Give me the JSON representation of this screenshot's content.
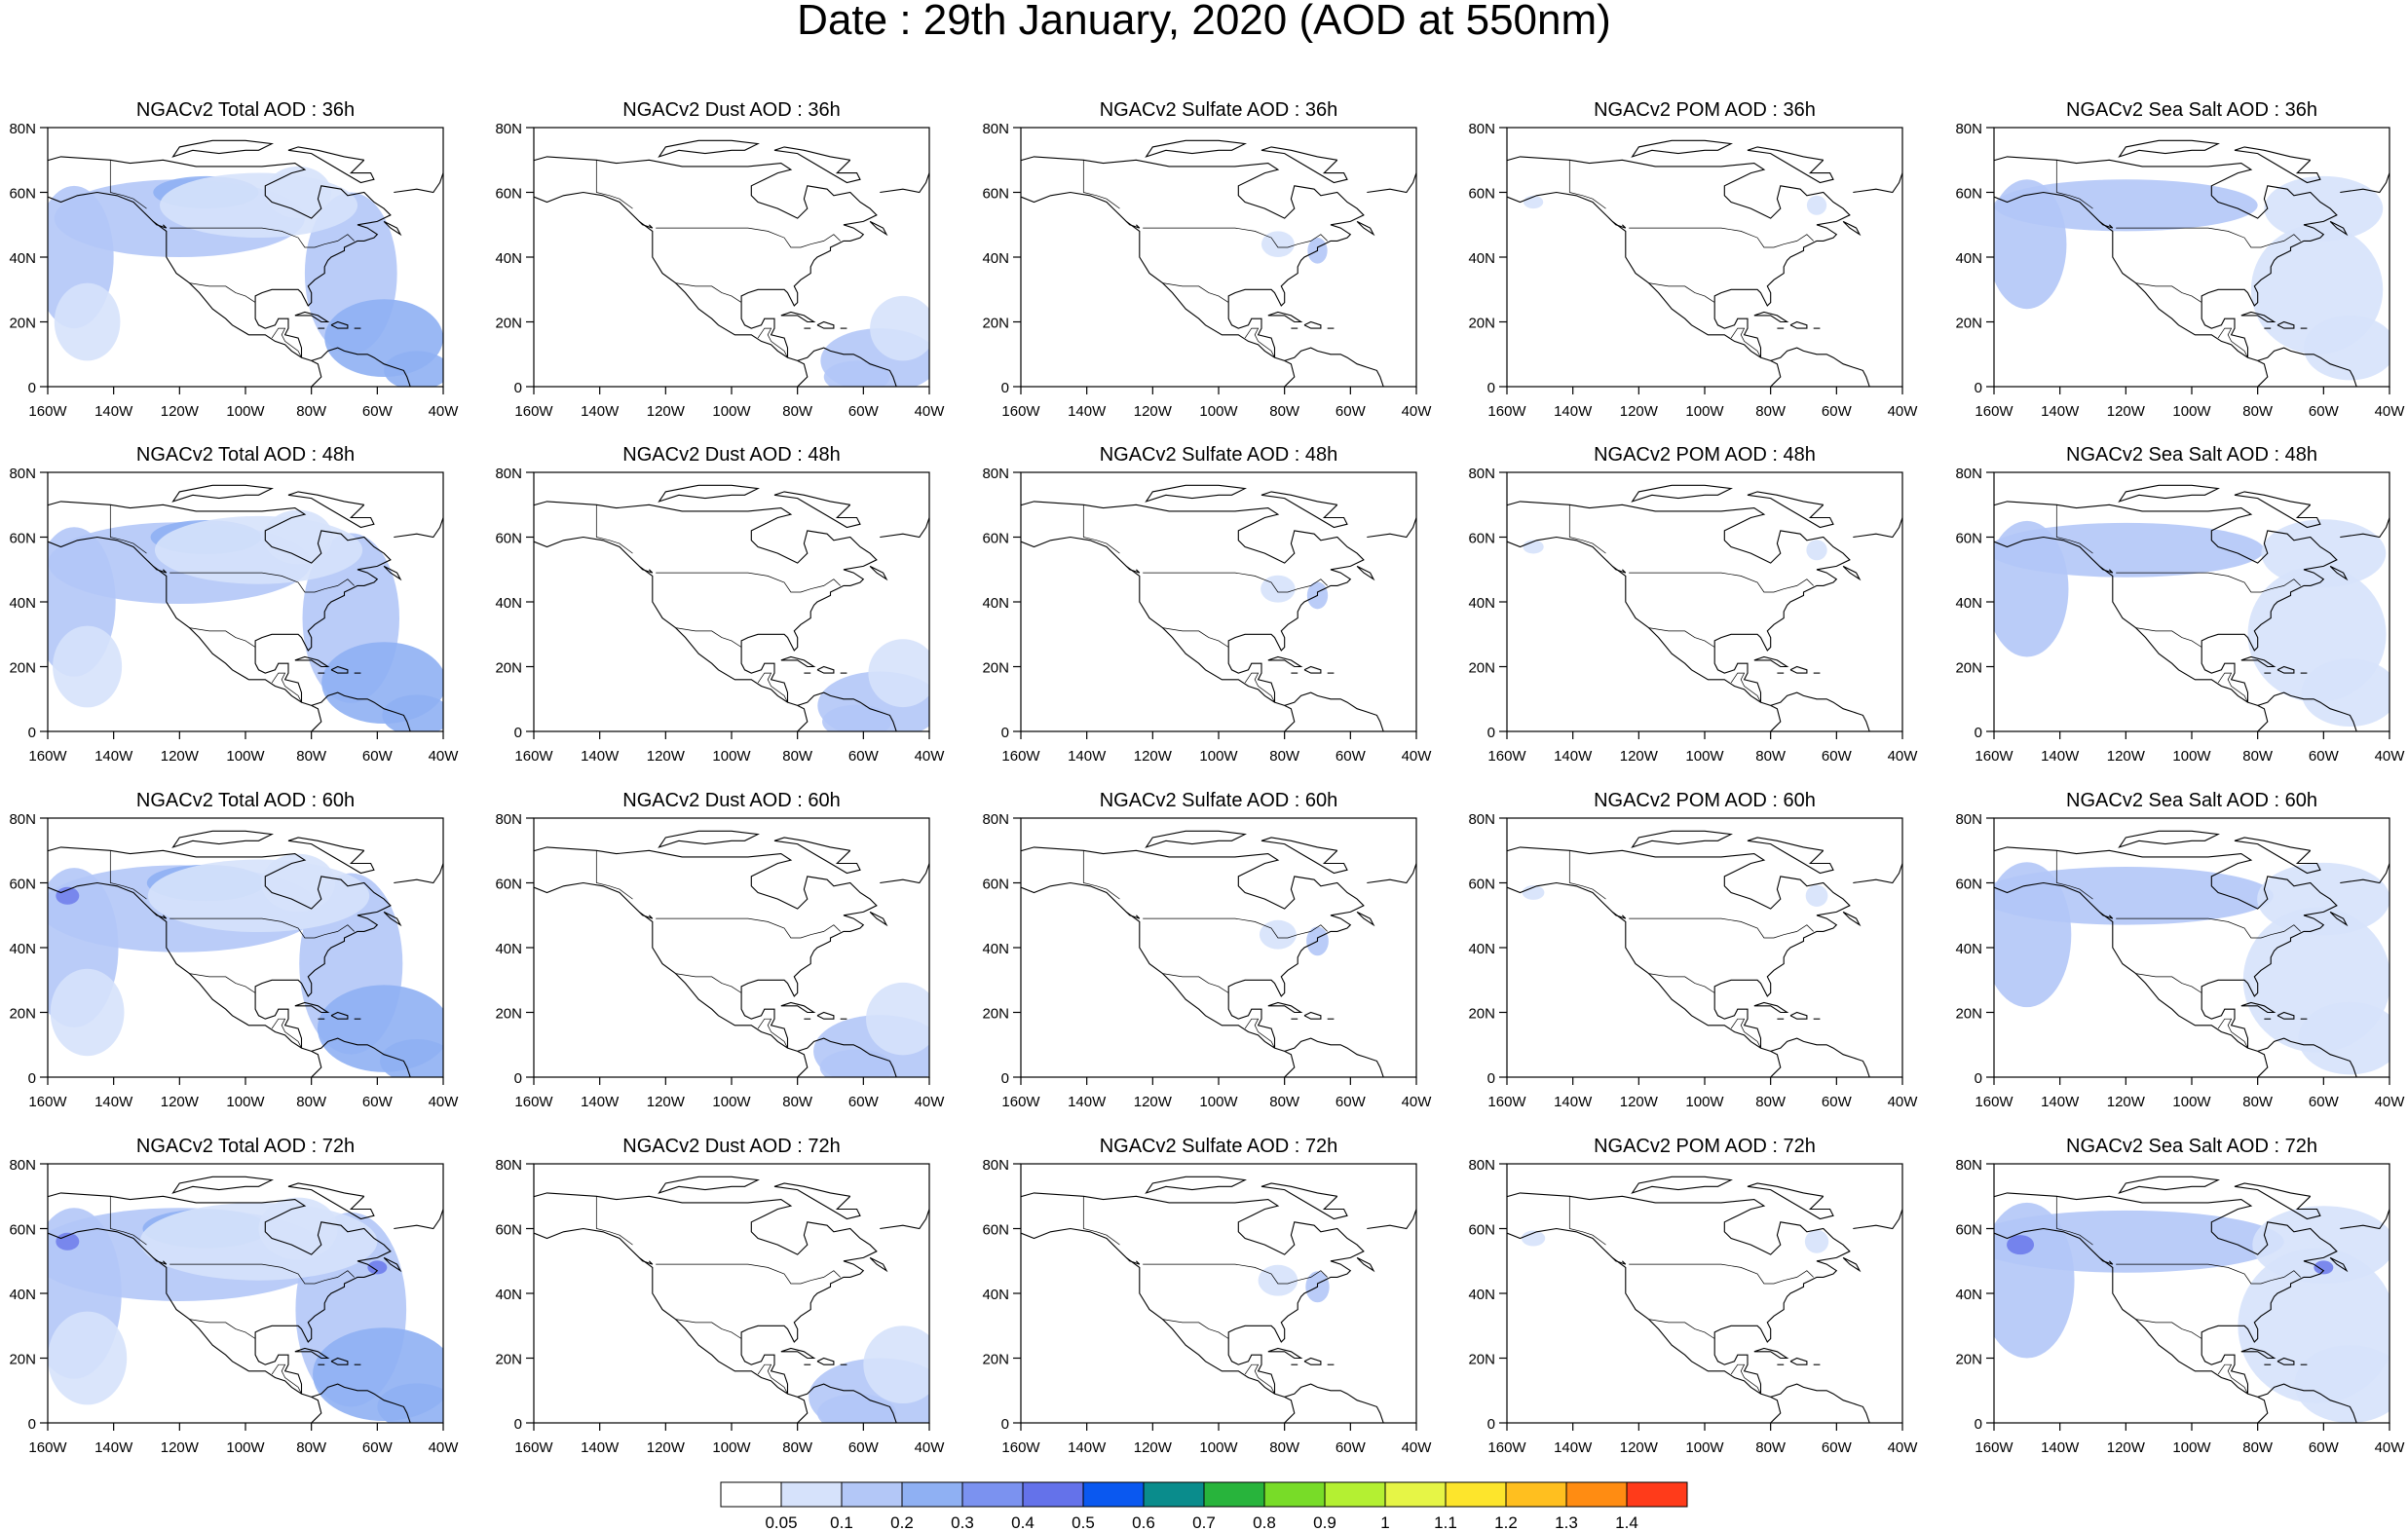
{
  "title": "Date : 29th January, 2020 (AOD at 550nm)",
  "panels": [
    [
      "NGACv2 Total AOD : 36h",
      "NGACv2 Dust AOD : 36h",
      "NGACv2 Sulfate AOD : 36h",
      "NGACv2 POM AOD : 36h",
      "NGACv2 Sea Salt AOD : 36h"
    ],
    [
      "NGACv2 Total AOD : 48h",
      "NGACv2 Dust AOD : 48h",
      "NGACv2 Sulfate AOD : 48h",
      "NGACv2 POM AOD : 48h",
      "NGACv2 Sea Salt AOD : 48h"
    ],
    [
      "NGACv2 Total AOD : 60h",
      "NGACv2 Dust AOD : 60h",
      "NGACv2 Sulfate AOD : 60h",
      "NGACv2 POM AOD : 60h",
      "NGACv2 Sea Salt AOD : 60h"
    ],
    [
      "NGACv2 Total AOD : 72h",
      "NGACv2 Dust AOD : 72h",
      "NGACv2 Sulfate AOD : 72h",
      "NGACv2 POM AOD : 72h",
      "NGACv2 Sea Salt  AOD : 72h"
    ]
  ],
  "lat_ticks": [
    "80N",
    "60N",
    "40N",
    "20N",
    "0"
  ],
  "lon_ticks": [
    "160W",
    "140W",
    "120W",
    "100W",
    "80W",
    "60W",
    "40W"
  ],
  "map_extent": {
    "lon": [
      -160,
      -40
    ],
    "lat": [
      0,
      80
    ]
  },
  "colorbar": {
    "labels": [
      "0.05",
      "0.1",
      "0.2",
      "0.3",
      "0.4",
      "0.5",
      "0.6",
      "0.7",
      "0.8",
      "0.9",
      "1",
      "1.1",
      "1.2",
      "1.3",
      "1.4"
    ],
    "colors": [
      "#ffffff",
      "#d6e2fb",
      "#b3c7f7",
      "#8fb0f3",
      "#7b92f0",
      "#6472ea",
      "#0a58f0",
      "#0a8c8c",
      "#28b43c",
      "#78dc28",
      "#b4f032",
      "#e6f546",
      "#fde52c",
      "#ffbf1f",
      "#ff8c12",
      "#ff3b1a"
    ]
  },
  "layer_colors": {
    "light": "#d6e2fb",
    "mid": "#b3c7f7",
    "strong": "#8fb0f3",
    "peak": "#6472ea"
  }
}
